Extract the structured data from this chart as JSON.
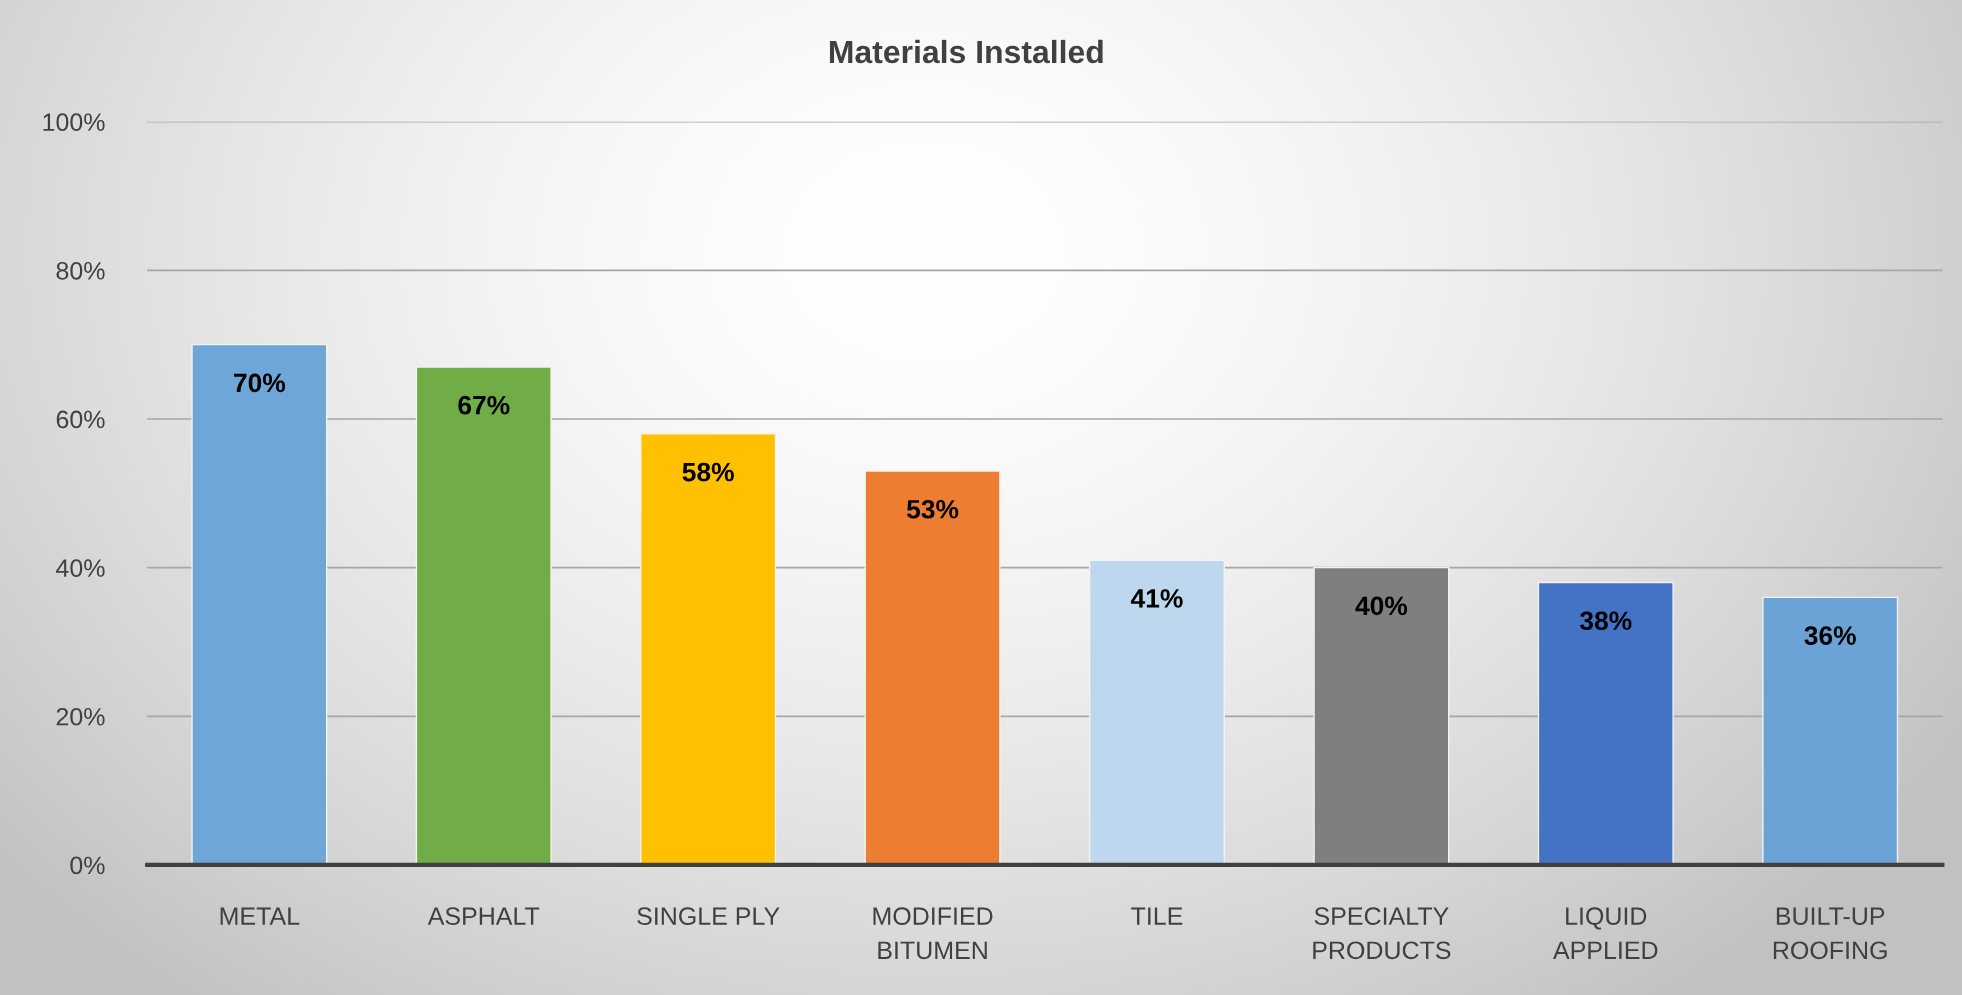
{
  "chart_data": {
    "type": "bar",
    "title": "Materials Installed",
    "categories": [
      "METAL",
      "ASPHALT",
      "SINGLE PLY",
      "MODIFIED\nBITUMEN",
      "TILE",
      "SPECIALTY\nPRODUCTS",
      "LIQUID\nAPPLIED",
      "BUILT-UP\nROOFING"
    ],
    "values": [
      70,
      67,
      58,
      53,
      41,
      40,
      38,
      36
    ],
    "value_labels": [
      "70%",
      "67%",
      "58%",
      "53%",
      "41%",
      "40%",
      "38%",
      "36%"
    ],
    "colors": [
      "#6fa6d8",
      "#70ad47",
      "#ffc000",
      "#ed7d31",
      "#bdd7ee",
      "#7f7f7f",
      "#4472c4",
      "#6ba3d6"
    ],
    "ylim": [
      0,
      100
    ],
    "yticks": [
      {
        "value": 0,
        "label": "0%"
      },
      {
        "value": 20,
        "label": "20%"
      },
      {
        "value": 40,
        "label": "40%"
      },
      {
        "value": 60,
        "label": "60%"
      },
      {
        "value": 80,
        "label": "80%"
      },
      {
        "value": 100,
        "label": "100%"
      }
    ],
    "grid": "y",
    "legend": false
  }
}
